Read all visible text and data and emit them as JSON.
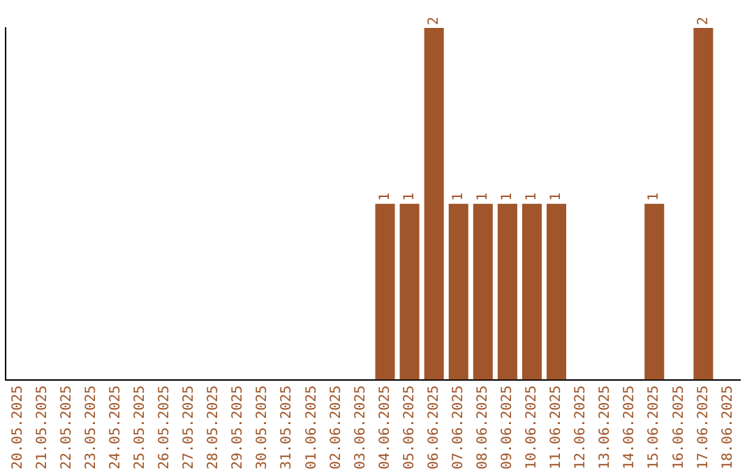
{
  "chart_data": {
    "type": "bar",
    "categories": [
      "20.05.2025",
      "21.05.2025",
      "22.05.2025",
      "23.05.2025",
      "24.05.2025",
      "25.05.2025",
      "26.05.2025",
      "27.05.2025",
      "28.05.2025",
      "29.05.2025",
      "30.05.2025",
      "31.05.2025",
      "01.06.2025",
      "02.06.2025",
      "03.06.2025",
      "04.06.2025",
      "05.06.2025",
      "06.06.2025",
      "07.06.2025",
      "08.06.2025",
      "09.06.2025",
      "10.06.2025",
      "11.06.2025",
      "12.06.2025",
      "13.06.2025",
      "14.06.2025",
      "15.06.2025",
      "16.06.2025",
      "17.06.2025",
      "18.06.2025"
    ],
    "values": [
      null,
      null,
      null,
      null,
      null,
      null,
      null,
      null,
      null,
      null,
      null,
      null,
      null,
      null,
      null,
      1,
      1,
      2,
      1,
      1,
      1,
      1,
      1,
      null,
      null,
      null,
      1,
      null,
      2,
      null
    ],
    "data_labels": true,
    "color": "#a0562a",
    "grid": false,
    "legend": false,
    "tick_labels": "x"
  }
}
